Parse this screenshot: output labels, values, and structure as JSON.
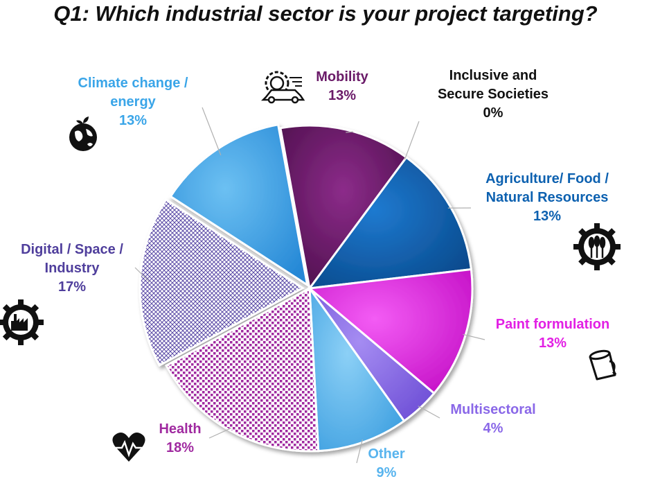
{
  "chart_data": {
    "type": "pie",
    "title": "Q1: Which industrial sector is your project targeting?",
    "slices": [
      {
        "name": "Mobility",
        "lines": [
          "Mobility"
        ],
        "value": 13,
        "value_label": "13%",
        "color": "#6a1a68",
        "icon": "car-gear-icon"
      },
      {
        "name": "Inclusive and Secure Societies",
        "lines": [
          "Inclusive and",
          "Secure Societies"
        ],
        "value": 0,
        "value_label": "0%",
        "color": "#111111"
      },
      {
        "name": "Agriculture/ Food / Natural Resources",
        "lines": [
          "Agriculture/ Food /",
          "Natural Resources"
        ],
        "value": 13,
        "value_label": "13%",
        "color": "#0d61b0",
        "icon": "wheat-gear-icon"
      },
      {
        "name": "Paint formulation",
        "lines": [
          "Paint formulation"
        ],
        "value": 13,
        "value_label": "13%",
        "color": "#e21fe4",
        "icon": "paint-bucket-icon"
      },
      {
        "name": "Multisectoral",
        "lines": [
          "Multisectoral"
        ],
        "value": 4,
        "value_label": "4%",
        "color": "#8a68e8"
      },
      {
        "name": "Other",
        "lines": [
          "Other"
        ],
        "value": 9,
        "value_label": "9%",
        "color": "#58b4ee"
      },
      {
        "name": "Health",
        "lines": [
          "Health"
        ],
        "value": 18,
        "value_label": "18%",
        "color": "#a02aa0",
        "icon": "heart-pulse-icon"
      },
      {
        "name": "Digital / Space / Industry",
        "lines": [
          "Digital / Space /",
          "Industry"
        ],
        "value": 17,
        "value_label": "17%",
        "color": "#4f3e9c",
        "icon": "factory-gear-icon"
      },
      {
        "name": "Climate change / energy",
        "lines": [
          "Climate change /",
          "energy"
        ],
        "value": 13,
        "value_label": "13%",
        "color": "#3aa5e8",
        "icon": "globe-leaf-icon"
      }
    ]
  }
}
